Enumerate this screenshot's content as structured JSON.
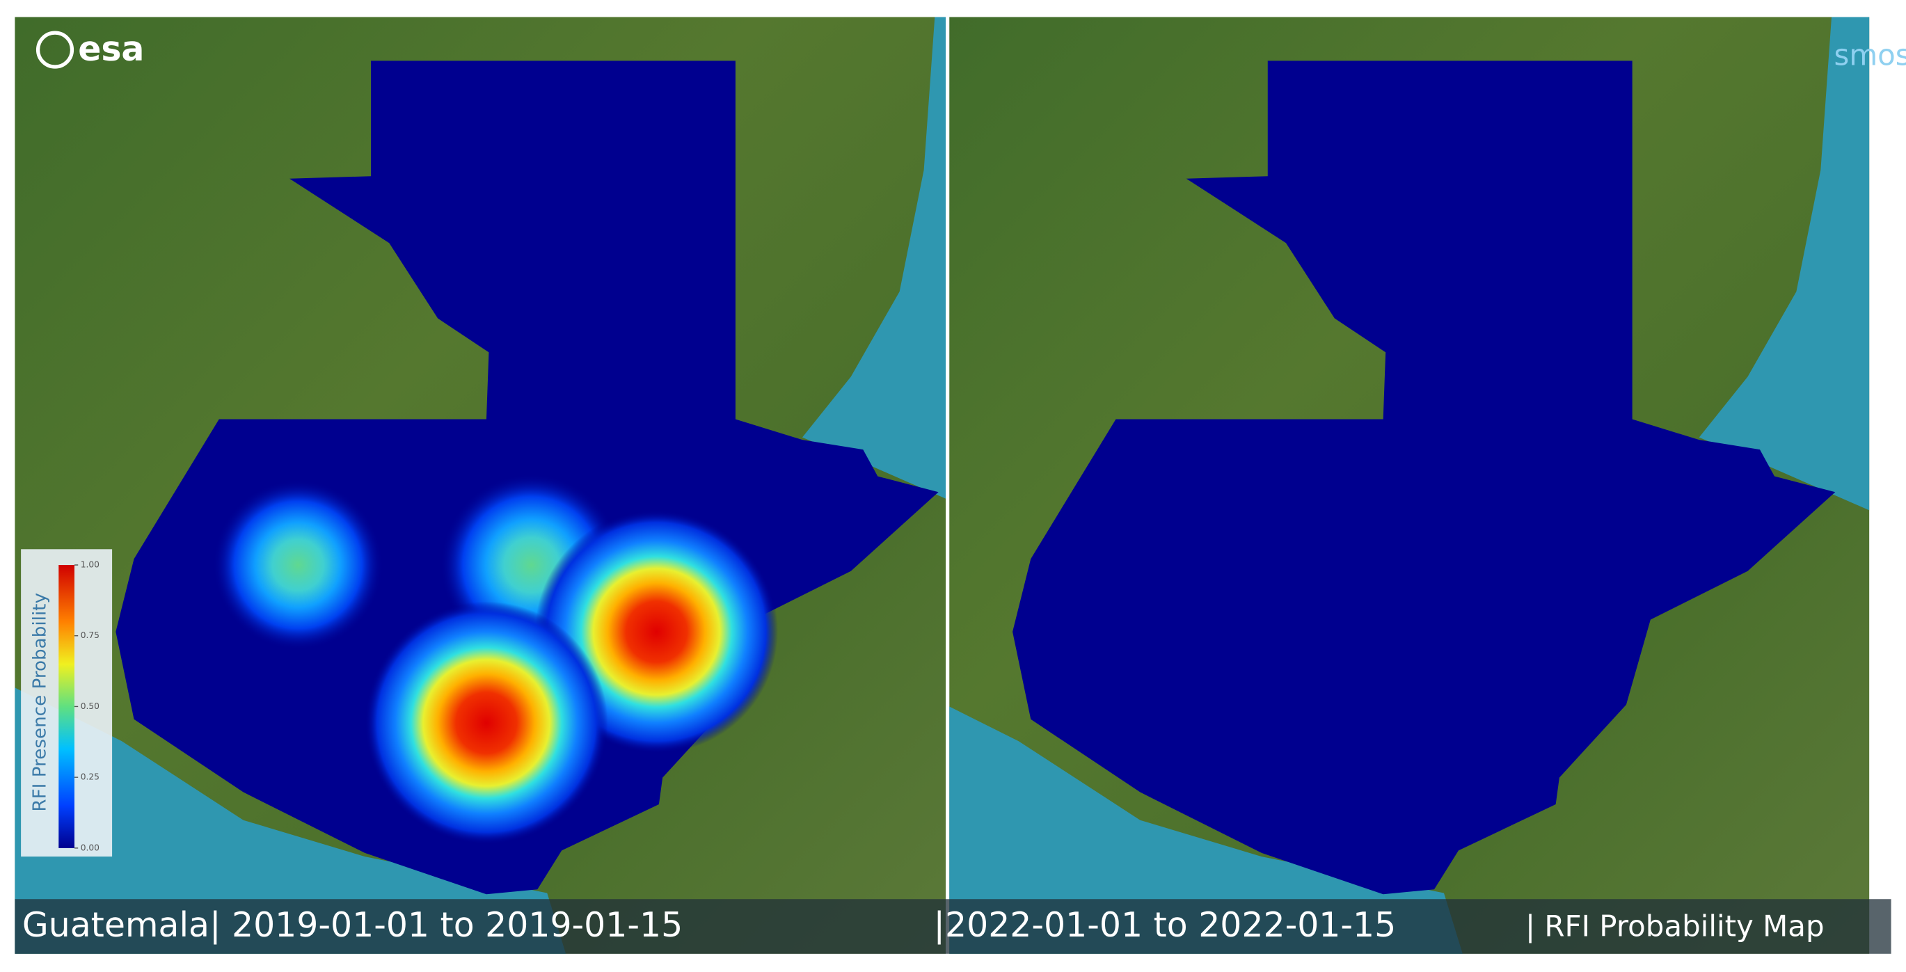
{
  "header": {
    "logo_left": "esa",
    "logo_right": "smos"
  },
  "colorbar": {
    "title": "RFI Presence Probability",
    "ticks": [
      {
        "value": 0,
        "label": "0.00"
      },
      {
        "value": 0.25,
        "label": "0.25"
      },
      {
        "value": 0.5,
        "label": "0.50"
      },
      {
        "value": 0.75,
        "label": "0.75"
      },
      {
        "value": 1,
        "label": "1.00"
      }
    ]
  },
  "caption": {
    "left": "Guatemala| 2019-01-01 to 2019-01-15",
    "right": "|2022-01-01 to 2022-01-15",
    "label": "| RFI Probability Map"
  }
}
